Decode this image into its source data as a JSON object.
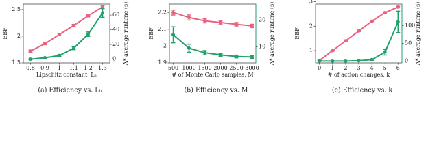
{
  "chart_data": [
    {
      "type": "line",
      "caption": "(a) Efficiency vs. Lₕ",
      "xlabel": "Lipschitz constant, Lₕ",
      "ylabel": "EBF",
      "y2label": "A* average runtime (s)",
      "x": [
        0.8,
        0.9,
        1.0,
        1.1,
        1.2,
        1.3
      ],
      "xlim": [
        0.75,
        1.35
      ],
      "xticks": [
        0.8,
        0.9,
        1.0,
        1.1,
        1.2,
        1.3
      ],
      "ylim": [
        1.5,
        2.6
      ],
      "yticks": [
        1.5,
        2.0,
        2.5
      ],
      "y2lim": [
        -5,
        75
      ],
      "y2ticks": [
        0,
        20,
        40,
        60
      ],
      "series": [
        {
          "color": "#e8627f",
          "values": [
            1.72,
            1.86,
            2.03,
            2.2,
            2.38,
            2.55
          ],
          "errors": [
            0.02,
            0.02,
            0.02,
            0.02,
            0.02,
            0.02
          ]
        },
        {
          "color": "#22a06b",
          "axis": "y2",
          "values": [
            0,
            2,
            5,
            15,
            34,
            63
          ],
          "errors": [
            0.5,
            0.8,
            1,
            2,
            3,
            6
          ]
        }
      ]
    },
    {
      "type": "line",
      "caption": "(b) Efficiency vs. M",
      "xlabel": "# of Monte Carlo samples, M",
      "ylabel": "EBF",
      "y2label": "A* average runtime (s)",
      "x": [
        500,
        1000,
        1500,
        2000,
        2500,
        3000
      ],
      "xlim": [
        380,
        3120
      ],
      "xticks": [
        500,
        1000,
        1500,
        2000,
        2500,
        3000
      ],
      "ylim": [
        1.9,
        2.25
      ],
      "yticks": [
        1.9,
        2.0,
        2.1,
        2.2
      ],
      "y2lim": [
        4,
        26
      ],
      "y2ticks": [
        10,
        20
      ],
      "series": [
        {
          "color": "#e8627f",
          "values": [
            2.2,
            2.17,
            2.15,
            2.14,
            2.13,
            2.12
          ],
          "errors": [
            0.015,
            0.015,
            0.012,
            0.012,
            0.01,
            0.01
          ]
        },
        {
          "color": "#22a06b",
          "axis": "y2",
          "values": [
            14.5,
            9.5,
            7.8,
            7,
            6.4,
            6.2
          ],
          "errors": [
            3,
            1.5,
            0.8,
            0.5,
            0.5,
            0.5
          ]
        }
      ]
    },
    {
      "type": "line",
      "caption": "(c) Efficiency vs. k",
      "xlabel": "# of action changes, k",
      "ylabel": "EBF",
      "y2label": "A* average runtime (s)",
      "x": [
        0,
        1,
        2,
        3,
        4,
        5,
        6
      ],
      "xlim": [
        -0.3,
        6.3
      ],
      "xticks": [
        0,
        1,
        2,
        3,
        4,
        5,
        6
      ],
      "ylim": [
        0.5,
        2.9
      ],
      "yticks": [
        1,
        2,
        3
      ],
      "y2lim": [
        -5,
        160
      ],
      "y2ticks": [
        0,
        50,
        100
      ],
      "series": [
        {
          "color": "#e8627f",
          "values": [
            0.6,
            1.0,
            1.4,
            1.8,
            2.2,
            2.55,
            2.78
          ],
          "errors": [
            0.02,
            0.02,
            0.02,
            0.02,
            0.02,
            0.03,
            0.03
          ]
        },
        {
          "color": "#22a06b",
          "axis": "y2",
          "values": [
            0,
            0,
            0,
            1,
            4,
            25,
            110
          ],
          "errors": [
            0.5,
            0.5,
            0.5,
            1,
            2,
            8,
            30
          ]
        }
      ]
    }
  ]
}
